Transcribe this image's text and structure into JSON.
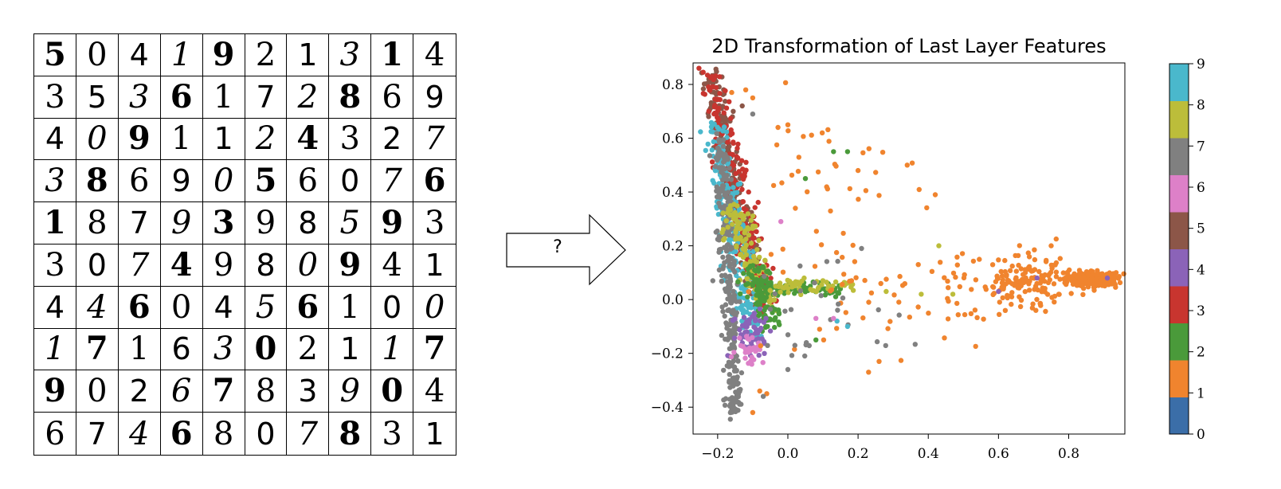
{
  "digit_grid": {
    "rows": [
      [
        "5",
        "0",
        "4",
        "1",
        "9",
        "2",
        "1",
        "3",
        "1",
        "4"
      ],
      [
        "3",
        "5",
        "3",
        "6",
        "1",
        "7",
        "2",
        "8",
        "6",
        "9"
      ],
      [
        "4",
        "0",
        "9",
        "1",
        "1",
        "2",
        "4",
        "3",
        "2",
        "7"
      ],
      [
        "3",
        "8",
        "6",
        "9",
        "0",
        "5",
        "6",
        "0",
        "7",
        "6"
      ],
      [
        "1",
        "8",
        "7",
        "9",
        "3",
        "9",
        "8",
        "5",
        "9",
        "3"
      ],
      [
        "3",
        "0",
        "7",
        "4",
        "9",
        "8",
        "0",
        "9",
        "4",
        "1"
      ],
      [
        "4",
        "4",
        "6",
        "0",
        "4",
        "5",
        "6",
        "1",
        "0",
        "0"
      ],
      [
        "1",
        "7",
        "1",
        "6",
        "3",
        "0",
        "2",
        "1",
        "1",
        "7"
      ],
      [
        "9",
        "0",
        "2",
        "6",
        "7",
        "8",
        "3",
        "9",
        "0",
        "4"
      ],
      [
        "6",
        "7",
        "4",
        "6",
        "8",
        "0",
        "7",
        "8",
        "3",
        "1"
      ]
    ]
  },
  "arrow": {
    "label": "?"
  },
  "colors": [
    "#3b6ea8",
    "#f0842e",
    "#4a9a3a",
    "#c8352f",
    "#8b63b8",
    "#8c5648",
    "#dd80c8",
    "#808080",
    "#bcbd3a",
    "#4ab8cc"
  ],
  "chart_data": {
    "type": "scatter",
    "title": "2D Transformation of Last Layer Features",
    "xlabel": "",
    "ylabel": "",
    "xlim": [
      -0.27,
      0.96
    ],
    "ylim": [
      -0.5,
      0.88
    ],
    "xticks": [
      -0.2,
      0.0,
      0.2,
      0.4,
      0.6,
      0.8
    ],
    "xtick_labels": [
      "−0.2",
      "0.0",
      "0.2",
      "0.4",
      "0.6",
      "0.8"
    ],
    "yticks": [
      -0.4,
      -0.2,
      0.0,
      0.2,
      0.4,
      0.6,
      0.8
    ],
    "ytick_labels": [
      "−0.4",
      "−0.2",
      "0.0",
      "0.2",
      "0.4",
      "0.6",
      "0.8"
    ],
    "grid": false,
    "colorbar": {
      "ticks": [
        0,
        1,
        2,
        3,
        4,
        5,
        6,
        7,
        8,
        9
      ],
      "labels": [
        "0",
        "1",
        "2",
        "3",
        "4",
        "5",
        "6",
        "7",
        "8",
        "9"
      ]
    },
    "clusters": [
      {
        "class": 5,
        "shape": "band",
        "from": [
          -0.22,
          0.84
        ],
        "to": [
          -0.08,
          0.0
        ],
        "spread": 0.015,
        "count": 260
      },
      {
        "class": 3,
        "shape": "band",
        "from": [
          -0.22,
          0.84
        ],
        "to": [
          -0.07,
          -0.02
        ],
        "spread": 0.02,
        "count": 200
      },
      {
        "class": 9,
        "shape": "band",
        "from": [
          -0.21,
          0.65
        ],
        "to": [
          -0.11,
          -0.12
        ],
        "spread": 0.02,
        "count": 230
      },
      {
        "class": 7,
        "shape": "band",
        "from": [
          -0.19,
          0.6
        ],
        "to": [
          -0.15,
          -0.43
        ],
        "spread": 0.012,
        "count": 300
      },
      {
        "class": 8,
        "shape": "band",
        "from": [
          -0.16,
          0.34
        ],
        "to": [
          -0.06,
          -0.02
        ],
        "spread": 0.02,
        "count": 130
      },
      {
        "class": 2,
        "shape": "band",
        "from": [
          -0.1,
          0.12
        ],
        "to": [
          -0.05,
          -0.1
        ],
        "spread": 0.02,
        "count": 100
      },
      {
        "class": 2,
        "shape": "band",
        "from": [
          -0.07,
          0.04
        ],
        "to": [
          0.14,
          0.04
        ],
        "spread": 0.012,
        "count": 80
      },
      {
        "class": 8,
        "shape": "band",
        "from": [
          -0.05,
          0.05
        ],
        "to": [
          0.2,
          0.05
        ],
        "spread": 0.012,
        "count": 50
      },
      {
        "class": 4,
        "shape": "blob",
        "center": [
          -0.1,
          -0.12
        ],
        "spread": [
          0.03,
          0.05
        ],
        "count": 60
      },
      {
        "class": 6,
        "shape": "blob",
        "center": [
          -0.11,
          -0.18
        ],
        "spread": [
          0.02,
          0.03
        ],
        "count": 30
      },
      {
        "class": 1,
        "shape": "blob",
        "center": [
          0.87,
          0.075
        ],
        "spread": [
          0.035,
          0.012
        ],
        "count": 320
      },
      {
        "class": 1,
        "shape": "blob",
        "center": [
          0.68,
          0.06
        ],
        "spread": [
          0.07,
          0.05
        ],
        "count": 140
      },
      {
        "class": 1,
        "shape": "blob",
        "center": [
          0.35,
          0.0
        ],
        "spread": [
          0.2,
          0.1
        ],
        "count": 70
      },
      {
        "class": 1,
        "shape": "blob",
        "center": [
          0.1,
          0.45
        ],
        "spread": [
          0.14,
          0.15
        ],
        "count": 40
      },
      {
        "class": 7,
        "shape": "blob",
        "center": [
          0.1,
          -0.05
        ],
        "spread": [
          0.14,
          0.08
        ],
        "count": 30
      }
    ],
    "points": [
      [
        0.17,
        0.55,
        2
      ],
      [
        0.13,
        0.55,
        2
      ],
      [
        0.05,
        0.45,
        2
      ],
      [
        0.21,
        0.19,
        7
      ],
      [
        0.28,
        0.03,
        8
      ],
      [
        0.38,
        0.02,
        8
      ],
      [
        0.47,
        0.02,
        8
      ],
      [
        0.43,
        0.2,
        8
      ],
      [
        0.17,
        -0.1,
        9
      ],
      [
        0.14,
        -0.08,
        9
      ],
      [
        -0.02,
        0.29,
        6
      ],
      [
        0.08,
        -0.07,
        6
      ],
      [
        0.13,
        -0.07,
        6
      ],
      [
        0.71,
        0.08,
        4
      ],
      [
        0.91,
        0.08,
        4
      ],
      [
        0.6,
        0.03,
        4
      ],
      [
        0.0,
        0.65,
        1
      ],
      [
        0.2,
        0.48,
        1
      ],
      [
        0.34,
        0.5,
        1
      ],
      [
        0.42,
        0.39,
        1
      ],
      [
        -0.1,
        -0.42,
        1
      ],
      [
        -0.08,
        -0.34,
        1
      ],
      [
        -0.06,
        -0.35,
        1
      ],
      [
        0.26,
        -0.23,
        1
      ],
      [
        0.23,
        -0.27,
        1
      ],
      [
        0.0,
        -0.26,
        7
      ],
      [
        0.02,
        -0.17,
        7
      ],
      [
        -0.07,
        -0.36,
        7
      ],
      [
        -0.1,
        0.69,
        7
      ],
      [
        0.08,
        -0.15,
        2
      ],
      [
        -0.13,
        0.72,
        5
      ],
      [
        -0.16,
        0.77,
        1
      ],
      [
        -0.12,
        0.78,
        1
      ],
      [
        -0.1,
        0.75,
        1
      ],
      [
        0.75,
        0.2,
        1
      ]
    ]
  }
}
